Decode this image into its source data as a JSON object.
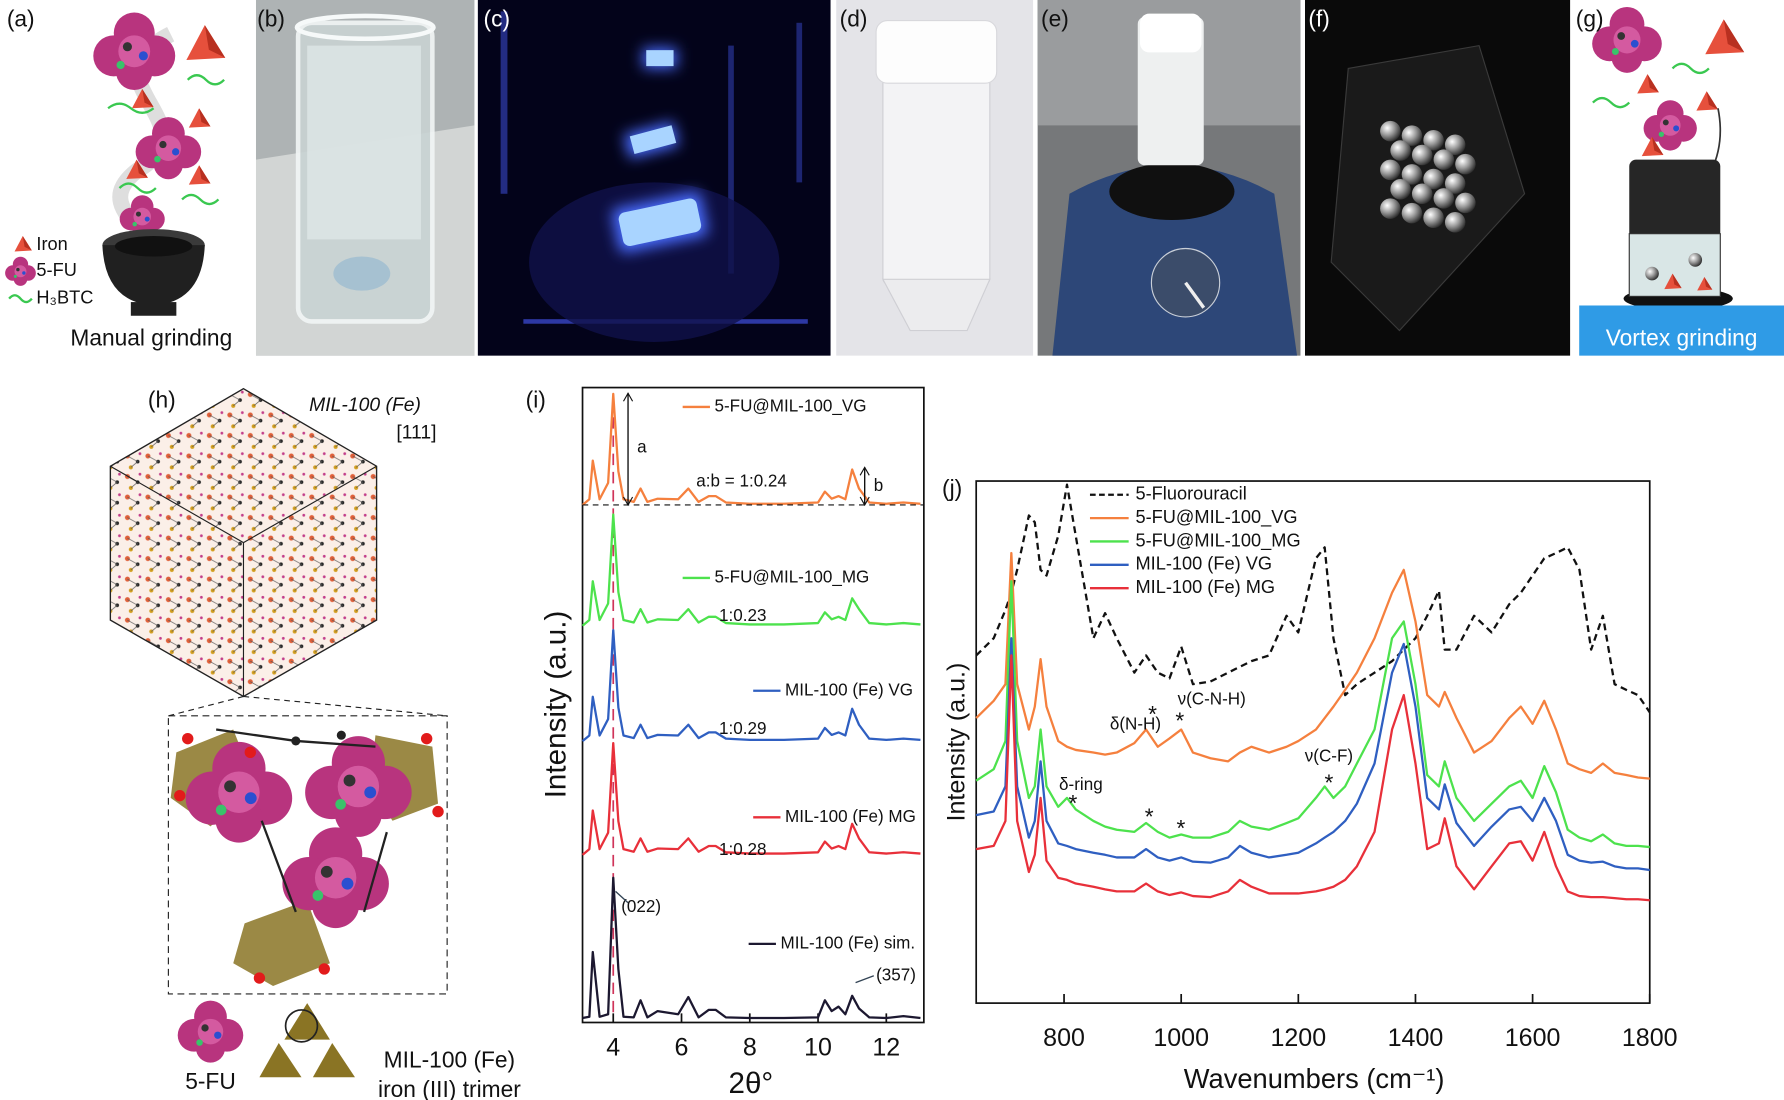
{
  "panel_labels": [
    "(a)",
    "(b)",
    "(c)",
    "(d)",
    "(e)",
    "(f)",
    "(g)",
    "(h)",
    "(i)",
    "(j)"
  ],
  "panel_a": {
    "legend": [
      "Iron",
      "5-FU",
      "H₃BTC"
    ],
    "caption": "Manual grinding"
  },
  "panel_g": {
    "caption": "Vortex grinding"
  },
  "panel_h": {
    "title": "MIL-100 (Fe)",
    "direction": "[111]",
    "legend": [
      "5-FU",
      "MIL-100 (Fe)",
      "iron (III) trimer"
    ]
  },
  "chart_data": [
    {
      "type": "line",
      "xlabel": "2θ°",
      "ylabel": "Intensity (a.u.)",
      "legend": "inline",
      "x": [
        3.1,
        3.3,
        3.4,
        3.6,
        3.85,
        4.0,
        4.15,
        4.3,
        4.6,
        4.8,
        5.0,
        5.3,
        5.9,
        6.2,
        6.5,
        6.8,
        7.0,
        7.3,
        8,
        9,
        10.0,
        10.2,
        10.4,
        10.6,
        10.8,
        11.0,
        11.2,
        11.5,
        12,
        12.5,
        13.0
      ],
      "xlim": [
        3.1,
        13.1
      ],
      "xticks": [
        4,
        6,
        8,
        10,
        12
      ],
      "ylim": [
        0,
        100
      ],
      "reference_line": {
        "x": 4,
        "color": "#d0345a"
      },
      "series": [
        {
          "name": "5-FU@MIL-100_VG",
          "color": "#f5803e",
          "values": [
            81.5,
            82.4,
            88.5,
            82.4,
            85,
            99,
            86.8,
            82.4,
            82,
            84.1,
            82,
            82.5,
            82.4,
            84.1,
            82,
            82.9,
            82.9,
            81.9,
            81.7,
            81.7,
            81.9,
            83.6,
            82.5,
            82.9,
            82.4,
            87.1,
            84.1,
            81.9,
            81.7,
            81.9,
            81.7
          ]
        },
        {
          "name": "5-FU@MIL-100_MG",
          "color": "#4de24d",
          "values": [
            62.5,
            63.4,
            69.5,
            63.4,
            66,
            80,
            67.8,
            63.4,
            63,
            65.1,
            63,
            63.5,
            63.4,
            65.1,
            63,
            63.9,
            63.9,
            62.9,
            62.7,
            62.7,
            62.9,
            64.6,
            63.5,
            63.9,
            63.4,
            66.8,
            65.1,
            62.9,
            62.7,
            62.9,
            62.7
          ]
        },
        {
          "name": "MIL-100 (Fe) VG",
          "color": "#2f5fc1",
          "values": [
            44.3,
            45.2,
            51.3,
            45.2,
            47.8,
            61.8,
            49.6,
            45.2,
            44.8,
            46.9,
            44.8,
            45.3,
            45.2,
            46.9,
            44.8,
            45.7,
            45.7,
            44.7,
            44.5,
            44.5,
            44.7,
            46.4,
            45.3,
            45.7,
            45.2,
            49.4,
            46.9,
            44.7,
            44.5,
            44.7,
            44.5
          ]
        },
        {
          "name": "MIL-100 (Fe) MG",
          "color": "#e8303a",
          "values": [
            26.4,
            27.3,
            33.4,
            27.3,
            29.9,
            44,
            31.7,
            27.3,
            26.9,
            29,
            26.9,
            27.4,
            27.3,
            29,
            26.9,
            27.8,
            27.8,
            26.8,
            26.6,
            26.6,
            26.8,
            28.5,
            27.4,
            27.8,
            27.3,
            31.3,
            29,
            26.8,
            26.6,
            26.8,
            26.6
          ]
        },
        {
          "name": "MIL-100 (Fe) sim.",
          "color": "#1c1830",
          "values": [
            0.7,
            0.9,
            11.1,
            0.9,
            1.3,
            22.8,
            8.4,
            0.9,
            0.8,
            3.5,
            0.8,
            1.8,
            1.3,
            4,
            0.8,
            2,
            2,
            0.8,
            0.7,
            0.7,
            0.8,
            3.5,
            1.8,
            2.5,
            1.3,
            4.2,
            2.2,
            0.8,
            0.7,
            1,
            0.7
          ]
        }
      ],
      "annotations": [
        "a",
        "a:b = 1:0.24",
        "b",
        "1:0.23",
        "1:0.29",
        "1:0.28",
        "(022)",
        "(357)"
      ]
    },
    {
      "type": "line",
      "xlabel": "Wavenumbers (cm⁻¹)",
      "ylabel": "Intensity (a.u.)",
      "legend": "upper left",
      "x": [
        650,
        680,
        700,
        710,
        720,
        740,
        750,
        760,
        770,
        790,
        805,
        820,
        850,
        870,
        890,
        920,
        940,
        960,
        980,
        1000,
        1020,
        1050,
        1080,
        1100,
        1120,
        1150,
        1180,
        1200,
        1230,
        1245,
        1260,
        1280,
        1300,
        1330,
        1360,
        1380,
        1400,
        1420,
        1440,
        1450,
        1470,
        1500,
        1530,
        1560,
        1580,
        1600,
        1620,
        1640,
        1660,
        1680,
        1700,
        1720,
        1740,
        1760,
        1780,
        1800
      ],
      "xlim": [
        650,
        1800
      ],
      "xticks": [
        800,
        1000,
        1200,
        1400,
        1600,
        1800
      ],
      "ylim": [
        0,
        100
      ],
      "series": [
        {
          "name": "5-Fluorouracil",
          "color": "#111111",
          "linestyle": "dashed",
          "values": [
            66.6,
            69.9,
            75.3,
            78.6,
            83,
            93.4,
            92.1,
            83,
            81.9,
            89.5,
            99.3,
            89.5,
            69.9,
            74.7,
            69.9,
            63.3,
            66.6,
            63.3,
            62.2,
            68.3,
            61.1,
            61.6,
            63.3,
            64.4,
            65.5,
            66.6,
            74.2,
            71,
            85.2,
            87.3,
            69.9,
            59,
            61.1,
            63.3,
            65.5,
            67.7,
            69.9,
            74.2,
            79,
            67.7,
            67.7,
            74.2,
            71,
            76.4,
            78.6,
            81.9,
            85.2,
            86.2,
            87.3,
            83,
            67.7,
            74.2,
            61.1,
            60,
            59,
            55.7
          ]
        },
        {
          "name": "5-FU@MIL-100_VG",
          "color": "#f5803e",
          "linestyle": "solid",
          "values": [
            54.6,
            57.9,
            61.1,
            86.2,
            61.1,
            52.4,
            56.8,
            65.9,
            56.8,
            50.2,
            49.1,
            48.5,
            48,
            47.6,
            48,
            49.8,
            52.4,
            49.1,
            50.7,
            52.4,
            48,
            46.9,
            46.3,
            48,
            49.1,
            48,
            49.1,
            50.2,
            52.4,
            54.6,
            56.8,
            60,
            63.3,
            69.9,
            78.6,
            83,
            73.1,
            59,
            56.8,
            59.6,
            54.6,
            48,
            50.2,
            54.6,
            56.8,
            53.5,
            57.9,
            52.4,
            45.9,
            44.8,
            44.1,
            45.9,
            44.1,
            43.7,
            43.2,
            43
          ]
        },
        {
          "name": "5-FU@MIL-100_MG",
          "color": "#4de24d",
          "linestyle": "solid",
          "values": [
            42.6,
            44.8,
            50.2,
            80.8,
            50.2,
            39.3,
            41.5,
            52.4,
            41.5,
            37.6,
            39.3,
            37.1,
            34.9,
            33.8,
            33.2,
            32.8,
            34.5,
            32.8,
            31.7,
            32.3,
            31.7,
            31.7,
            32.8,
            34.9,
            33.8,
            33.2,
            34.5,
            35.4,
            39.3,
            41.5,
            39.3,
            41.5,
            45.9,
            52.4,
            69.9,
            73.1,
            61.1,
            43.7,
            41.5,
            46.3,
            39.3,
            34.9,
            38.2,
            41.5,
            42.6,
            39.3,
            45.4,
            40.4,
            33.2,
            31.7,
            31,
            32.3,
            30.6,
            30.1,
            30.1,
            29.9
          ]
        },
        {
          "name": "MIL-100 (Fe) VG",
          "color": "#2f5fc1",
          "linestyle": "solid",
          "values": [
            36,
            36.7,
            41.5,
            69.9,
            41.5,
            31.7,
            34.9,
            46.3,
            34.9,
            30.6,
            30.1,
            29.5,
            28.8,
            28.4,
            27.9,
            27.9,
            29.5,
            27.9,
            27.3,
            27.9,
            27.1,
            26.9,
            27.9,
            30.1,
            28.8,
            27.9,
            28.4,
            28.8,
            30.6,
            31.7,
            32.8,
            34.9,
            38.2,
            45.9,
            63.3,
            68.8,
            56.8,
            39.3,
            37.1,
            41.9,
            34.5,
            30.1,
            33.8,
            37.1,
            37.6,
            34.9,
            39.3,
            34.9,
            28.4,
            27.3,
            26.9,
            27.1,
            26.2,
            25.8,
            25.8,
            25.5
          ]
        },
        {
          "name": "MIL-100 (Fe) MG",
          "color": "#e8303a",
          "linestyle": "solid",
          "values": [
            29.5,
            30.1,
            34.9,
            66.6,
            34.9,
            25.1,
            28.4,
            39.3,
            27.3,
            24,
            23.6,
            22.9,
            22.3,
            21.8,
            21.4,
            21.4,
            22.9,
            21.4,
            20.7,
            21.2,
            20.5,
            20.3,
            21.4,
            23.6,
            22.3,
            21,
            21,
            21,
            21.4,
            21.8,
            22.3,
            23.6,
            26.2,
            32.8,
            52.4,
            59,
            45.9,
            29.5,
            30.6,
            35.4,
            26.2,
            21.8,
            26.2,
            30.6,
            31,
            27.3,
            32.8,
            26.2,
            21.4,
            20.5,
            20.3,
            20.3,
            20.1,
            19.9,
            19.9,
            19.7
          ]
        }
      ],
      "annotations": [
        "δ(N-H)",
        "ν(C-N-H)",
        "ν(C-F)",
        "δ-ring",
        "*",
        "*",
        "*",
        "*",
        "*",
        "*"
      ]
    }
  ]
}
